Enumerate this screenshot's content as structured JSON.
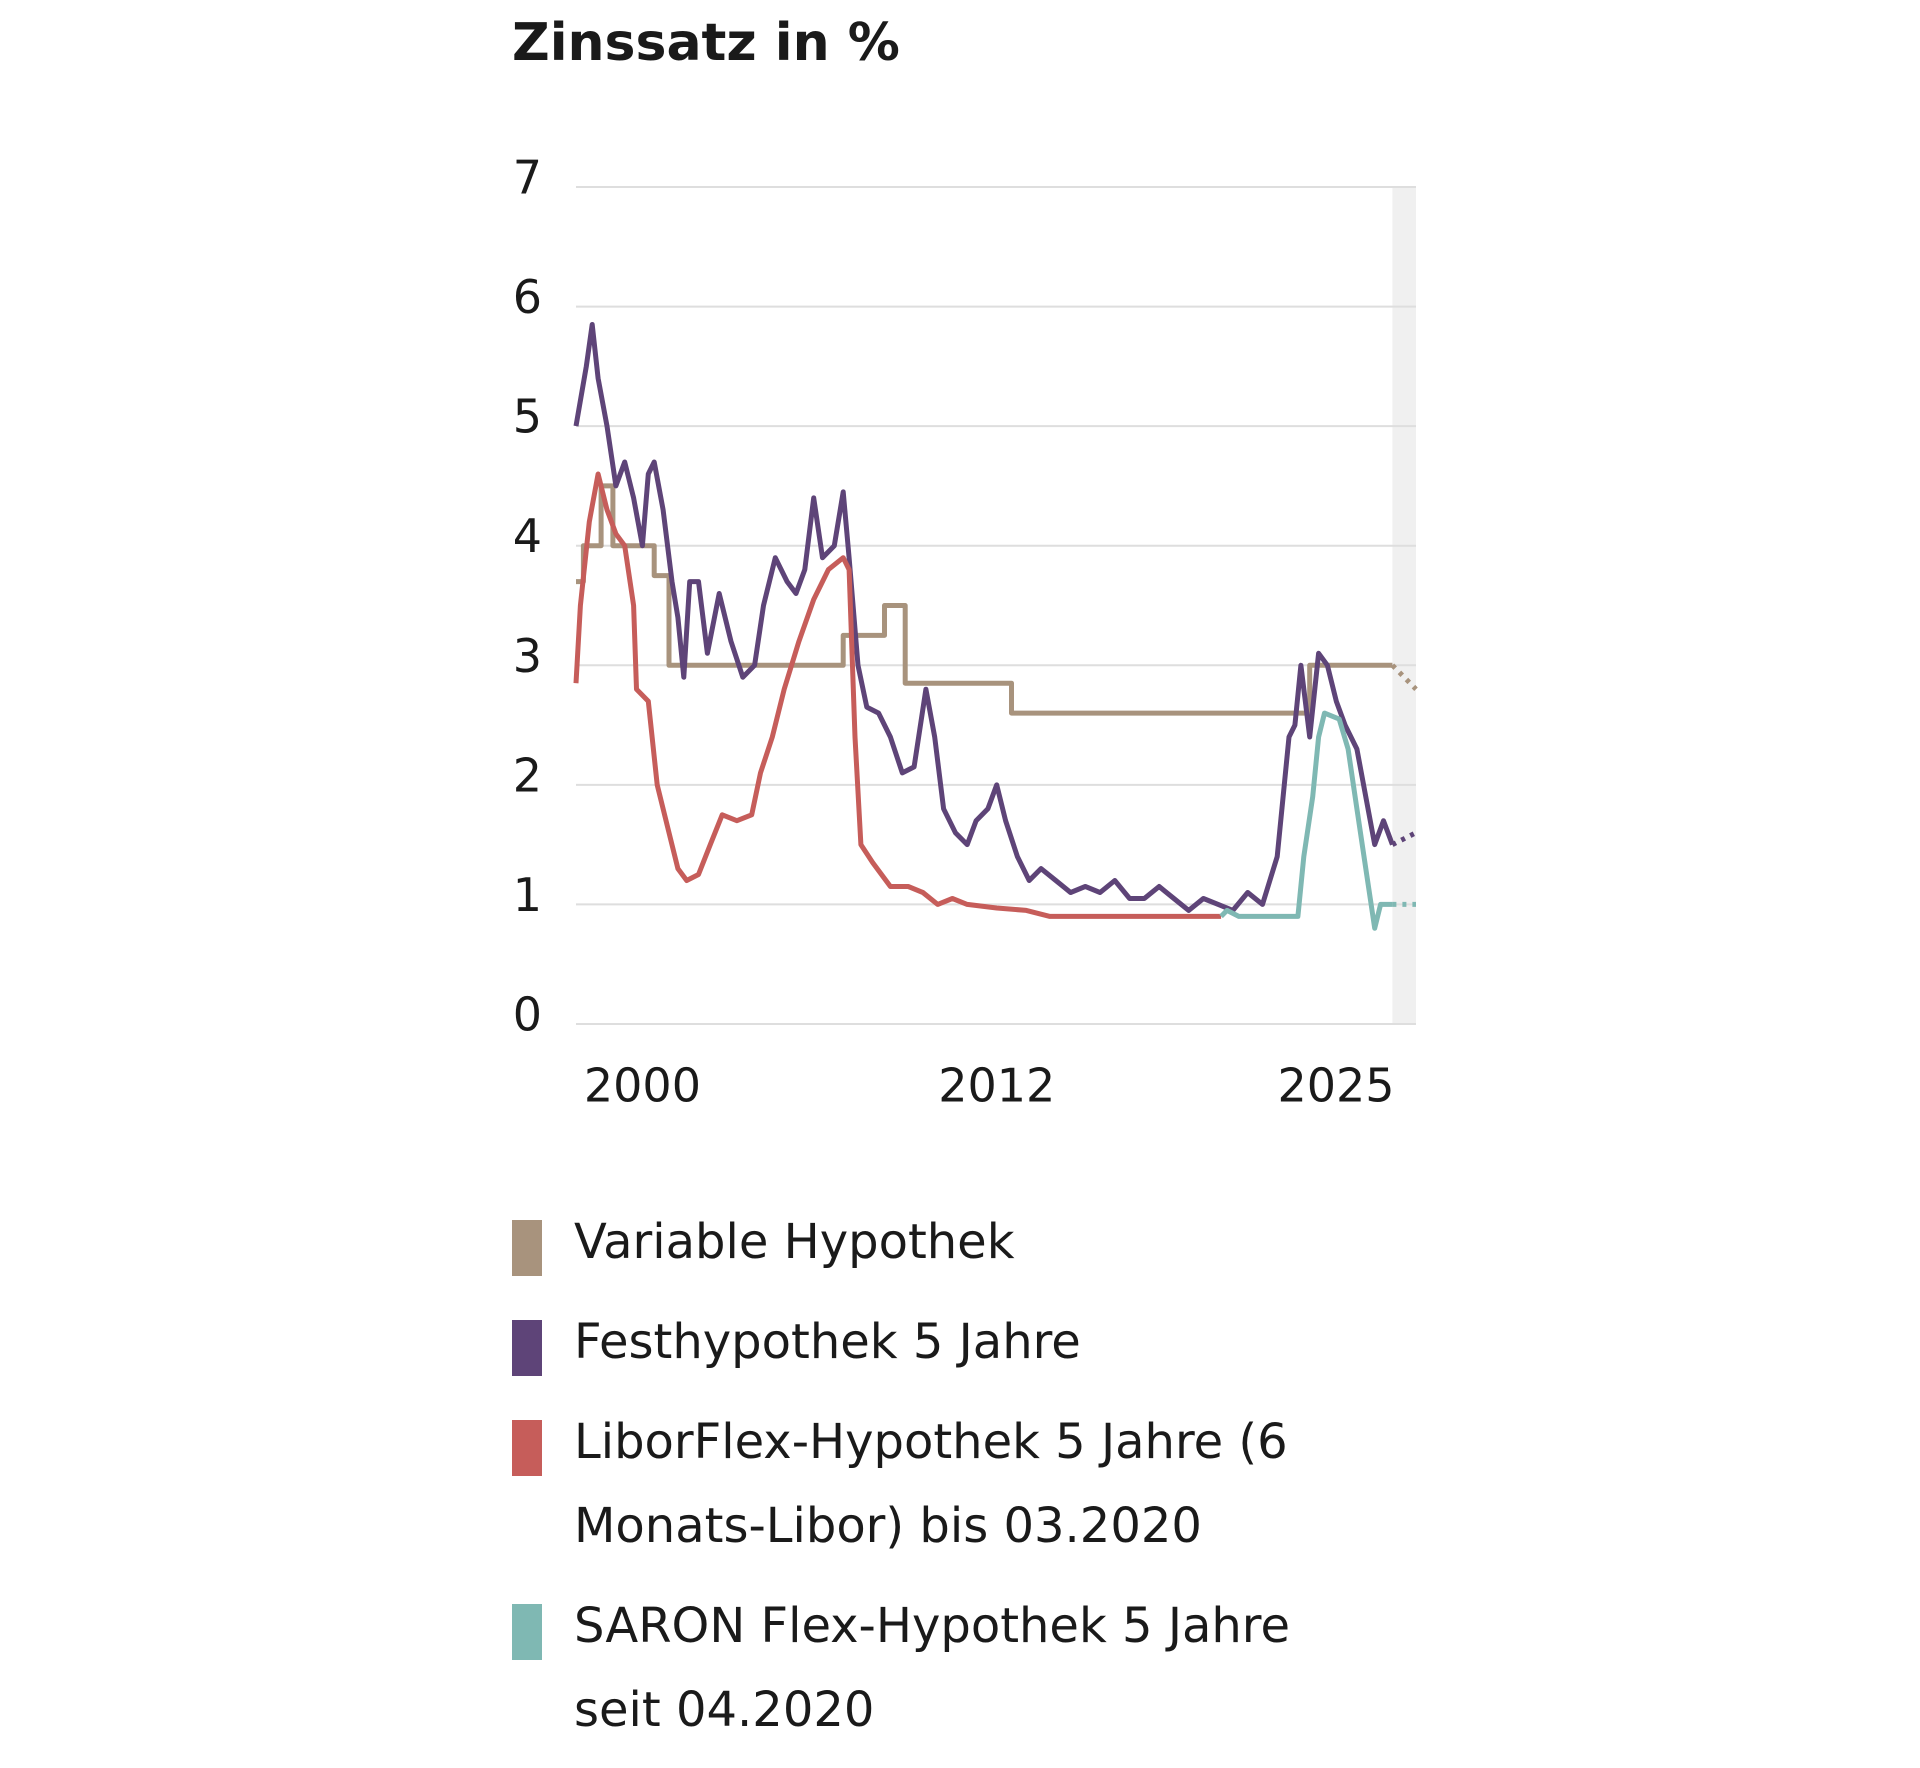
{
  "chart_data": {
    "type": "line",
    "title": "Zinssatz in %",
    "xlim": [
      1997.75,
      2026.2
    ],
    "xticks": [
      2000,
      2012,
      2025
    ],
    "ylim": [
      0,
      7
    ],
    "yticks": [
      0,
      1,
      2,
      3,
      4,
      5,
      6,
      7
    ],
    "grid": true,
    "forecast_start": 2025.4,
    "legend": "bottom",
    "series": [
      {
        "name": "Variable Hypothek",
        "color": "#a8937d",
        "x": [
          1997.75,
          1998.0,
          1998.0,
          1998.6,
          1998.6,
          1999.0,
          1999.0,
          2000.4,
          2000.4,
          2000.9,
          2000.9,
          2006.8,
          2006.8,
          2008.2,
          2008.2,
          2008.9,
          2008.9,
          2012.5,
          2012.5,
          2022.6,
          2022.6,
          2025.4,
          2026.2
        ],
        "values": [
          3.7,
          3.7,
          4.0,
          4.0,
          4.5,
          4.5,
          4.0,
          4.0,
          3.75,
          3.75,
          3.0,
          3.0,
          3.25,
          3.25,
          3.5,
          3.5,
          2.85,
          2.85,
          2.6,
          2.6,
          3.0,
          3.0,
          2.8
        ]
      },
      {
        "name": "Festhypothek 5 Jahre",
        "color": "#5e4478",
        "x": [
          1997.75,
          1998.1,
          1998.3,
          1998.5,
          1998.8,
          1999.1,
          1999.4,
          1999.7,
          2000.0,
          2000.2,
          2000.4,
          2000.7,
          2001.0,
          2001.2,
          2001.4,
          2001.6,
          2001.9,
          2002.2,
          2002.6,
          2003.0,
          2003.4,
          2003.8,
          2004.1,
          2004.5,
          2004.9,
          2005.2,
          2005.5,
          2005.8,
          2006.1,
          2006.5,
          2006.8,
          2007.0,
          2007.3,
          2007.6,
          2008.0,
          2008.4,
          2008.8,
          2009.2,
          2009.6,
          2009.9,
          2010.2,
          2010.6,
          2011.0,
          2011.3,
          2011.7,
          2012.0,
          2012.3,
          2012.7,
          2013.1,
          2013.5,
          2014.0,
          2014.5,
          2015.0,
          2015.5,
          2016.0,
          2016.5,
          2017.0,
          2017.5,
          2018.0,
          2018.5,
          2019.0,
          2019.5,
          2020.0,
          2020.5,
          2021.0,
          2021.5,
          2021.9,
          2022.1,
          2022.3,
          2022.6,
          2022.9,
          2023.2,
          2023.5,
          2023.8,
          2024.2,
          2024.5,
          2024.8,
          2025.1,
          2025.4,
          2026.2
        ],
        "values": [
          5.0,
          5.5,
          5.85,
          5.4,
          5.0,
          4.5,
          4.7,
          4.4,
          4.0,
          4.6,
          4.7,
          4.3,
          3.7,
          3.4,
          2.9,
          3.7,
          3.7,
          3.1,
          3.6,
          3.2,
          2.9,
          3.0,
          3.5,
          3.9,
          3.7,
          3.6,
          3.8,
          4.4,
          3.9,
          4.0,
          4.45,
          3.9,
          3.0,
          2.65,
          2.6,
          2.4,
          2.1,
          2.15,
          2.8,
          2.4,
          1.8,
          1.6,
          1.5,
          1.7,
          1.8,
          2.0,
          1.7,
          1.4,
          1.2,
          1.3,
          1.2,
          1.1,
          1.15,
          1.1,
          1.2,
          1.05,
          1.05,
          1.15,
          1.05,
          0.95,
          1.05,
          1.0,
          0.95,
          1.1,
          1.0,
          1.4,
          2.4,
          2.5,
          3.0,
          2.4,
          3.1,
          3.0,
          2.7,
          2.5,
          2.3,
          1.9,
          1.5,
          1.7,
          1.5,
          1.6
        ]
      },
      {
        "name": "LiborFlex-Hypothek 5 Jahre (6 Monats-Libor) bis 03.2020",
        "color": "#c65d5a",
        "x": [
          1997.75,
          1997.9,
          1998.2,
          1998.5,
          1998.8,
          1999.1,
          1999.4,
          1999.7,
          1999.8,
          2000.2,
          2000.5,
          2000.9,
          2001.2,
          2001.5,
          2001.9,
          2002.3,
          2002.7,
          2003.2,
          2003.7,
          2004.0,
          2004.4,
          2004.8,
          2005.3,
          2005.8,
          2006.3,
          2006.8,
          2007.0,
          2007.2,
          2007.4,
          2007.8,
          2008.4,
          2009.0,
          2009.5,
          2010.0,
          2010.5,
          2011.0,
          2012.0,
          2013.0,
          2013.8,
          2019.6
        ],
        "values": [
          2.85,
          3.5,
          4.2,
          4.6,
          4.3,
          4.1,
          4.0,
          3.5,
          2.8,
          2.7,
          2.0,
          1.6,
          1.3,
          1.2,
          1.25,
          1.5,
          1.75,
          1.7,
          1.75,
          2.1,
          2.4,
          2.8,
          3.2,
          3.55,
          3.8,
          3.9,
          3.8,
          2.4,
          1.5,
          1.35,
          1.15,
          1.15,
          1.1,
          1.0,
          1.05,
          1.0,
          0.97,
          0.95,
          0.9,
          0.9
        ]
      },
      {
        "name": "SARON Flex-Hypothek 5 Jahre seit 04.2020",
        "color": "#7fb8b3",
        "x": [
          2019.6,
          2019.8,
          2020.2,
          2022.2,
          2022.4,
          2022.7,
          2022.9,
          2023.1,
          2023.6,
          2023.9,
          2024.2,
          2024.5,
          2024.8,
          2025.0,
          2025.4,
          2026.2
        ],
        "values": [
          0.9,
          0.95,
          0.9,
          0.9,
          1.4,
          1.9,
          2.4,
          2.6,
          2.55,
          2.3,
          1.8,
          1.3,
          0.8,
          1.0,
          1.0,
          1.0
        ]
      }
    ]
  }
}
